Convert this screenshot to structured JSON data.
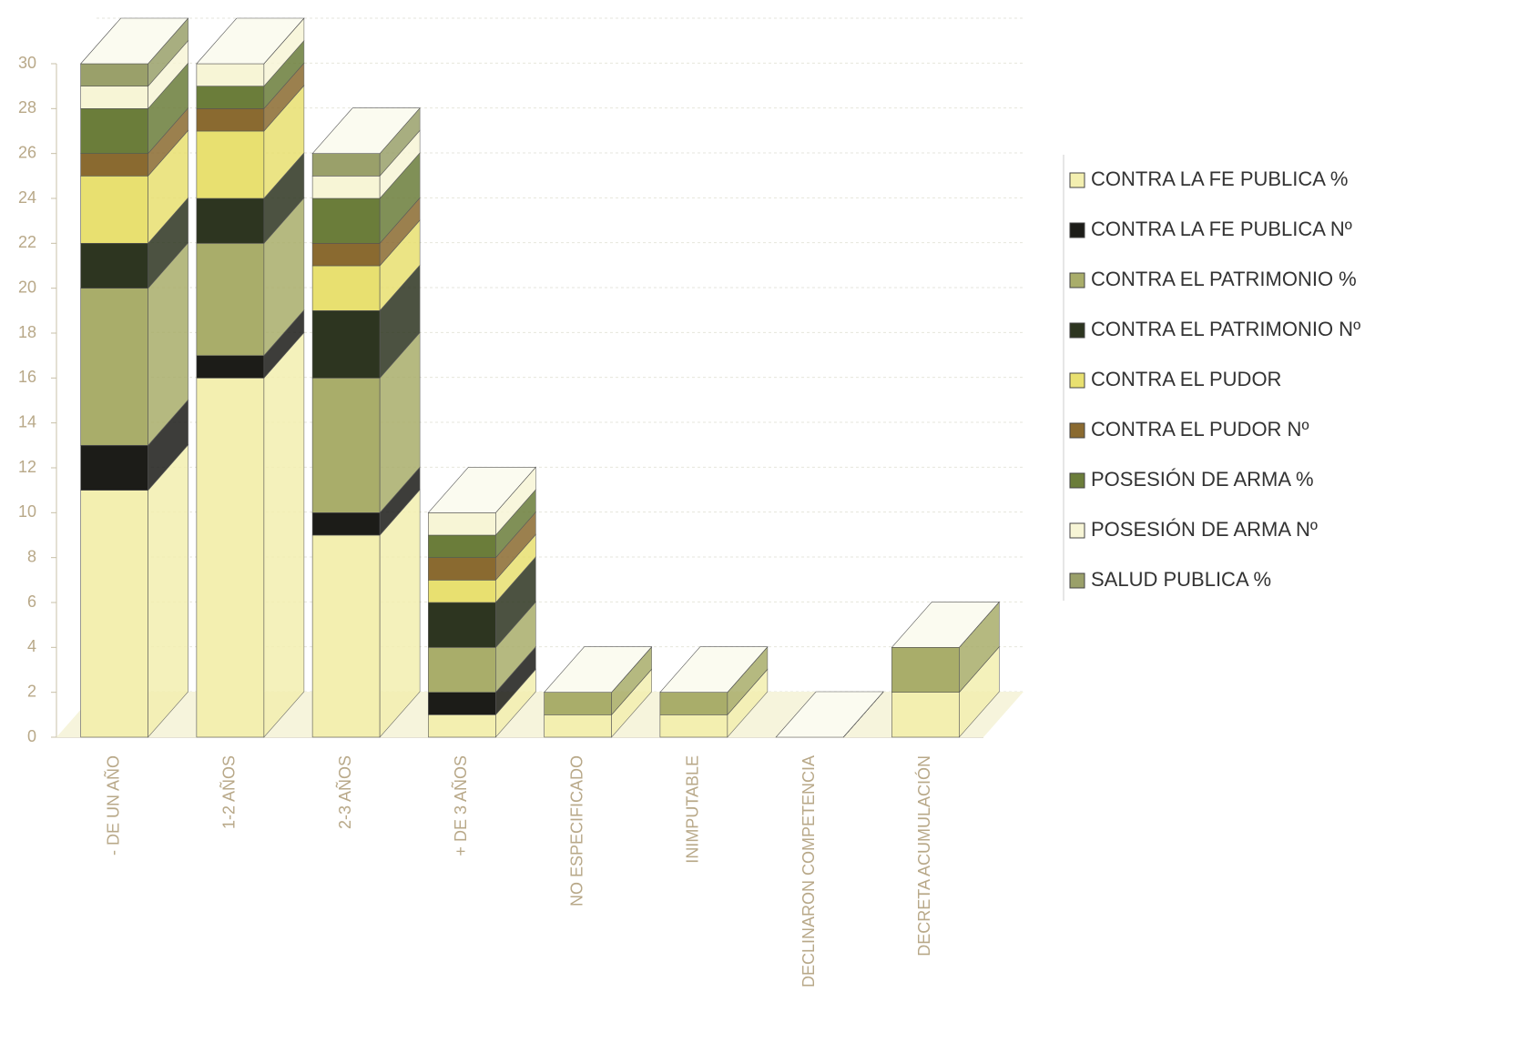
{
  "chart_data": {
    "type": "bar3d-stacked",
    "categories": [
      "- DE UN AÑO",
      "1-2 AÑOS",
      "2-3 AÑOS",
      "+ DE 3 AÑOS",
      "NO ESPECIFICADO",
      "INIMPUTABLE",
      "DECLINARON COMPETENCIA",
      "DECRETA ACUMULACIÓN"
    ],
    "series": [
      {
        "name": "CONTRA LA FE PUBLICA %",
        "color": "#f3efb0",
        "values": [
          11,
          16,
          9,
          1,
          1,
          1,
          0,
          2
        ]
      },
      {
        "name": "CONTRA LA FE PUBLICA Nº",
        "color": "#1c1c18",
        "values": [
          2,
          1,
          1,
          1,
          0,
          0,
          0,
          0
        ]
      },
      {
        "name": "CONTRA EL PATRIMONIO %",
        "color": "#a9ad6a",
        "values": [
          7,
          5,
          6,
          2,
          1,
          1,
          0,
          2
        ]
      },
      {
        "name": "CONTRA EL PATRIMONIO Nº",
        "color": "#2d3520",
        "values": [
          2,
          2,
          3,
          2,
          0,
          0,
          0,
          0
        ]
      },
      {
        "name": "CONTRA EL PUDOR",
        "color": "#e8e070",
        "values": [
          3,
          3,
          2,
          1,
          0,
          0,
          0,
          0
        ]
      },
      {
        "name": "CONTRA EL PUDOR Nº",
        "color": "#8a6a30",
        "values": [
          1,
          1,
          1,
          1,
          0,
          0,
          0,
          0
        ]
      },
      {
        "name": "POSESIÓN DE ARMA %",
        "color": "#6b7d3a",
        "values": [
          2,
          1,
          2,
          1,
          0,
          0,
          0,
          0
        ]
      },
      {
        "name": "POSESIÓN DE ARMA Nº",
        "color": "#f7f5d6",
        "values": [
          1,
          1,
          1,
          1,
          0,
          0,
          0,
          0
        ]
      },
      {
        "name": "SALUD PUBLICA %",
        "color": "#9aa06a",
        "values": [
          1,
          0,
          1,
          0,
          0,
          0,
          0,
          0
        ]
      }
    ],
    "ylim": [
      0,
      30
    ],
    "yticks": [
      0,
      2,
      4,
      6,
      8,
      10,
      12,
      14,
      16,
      18,
      20,
      22,
      24,
      26,
      28,
      30
    ],
    "grid": true
  }
}
